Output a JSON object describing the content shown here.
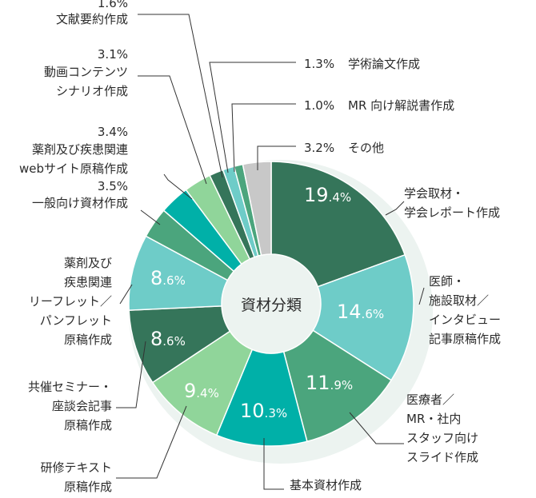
{
  "chart_data": {
    "type": "pie",
    "title": "資材分類",
    "slices": [
      {
        "key": "s1",
        "value": 19.4,
        "label": [
          "学会取材・",
          "学会レポート作成"
        ],
        "color": "#35755A",
        "inside": true,
        "big": "19",
        "small": ".4%"
      },
      {
        "key": "s2",
        "value": 14.6,
        "label": [
          "医師・",
          "施設取材／",
          "インタビュー",
          "記事原稿作成"
        ],
        "color": "#6ECCC8",
        "inside": true,
        "big": "14",
        "small": ".6%"
      },
      {
        "key": "s3",
        "value": 11.9,
        "label": [
          "医療者／",
          "MR・社内",
          "スタッフ向け",
          "スライド作成"
        ],
        "color": "#4BA57D",
        "inside": true,
        "big": "11",
        "small": ".9%"
      },
      {
        "key": "s4",
        "value": 10.3,
        "label": [
          "基本資材作成"
        ],
        "color": "#00B0A8",
        "inside": true,
        "big": "10",
        "small": ".3%"
      },
      {
        "key": "s5",
        "value": 9.4,
        "label": [
          "研修テキスト",
          "原稿作成"
        ],
        "color": "#90D59A",
        "inside": true,
        "big": "9",
        "small": ".4%"
      },
      {
        "key": "s6",
        "value": 8.6,
        "label": [
          "共催セミナー・",
          "座談会記事",
          "原稿作成"
        ],
        "color": "#35755A",
        "inside": true,
        "big": "8",
        "small": ".6%"
      },
      {
        "key": "s7",
        "value": 8.6,
        "label": [
          "薬剤及び",
          "疾患関連",
          "リーフレット／",
          "パンフレット",
          "原稿作成"
        ],
        "color": "#6ECCC8",
        "inside": true,
        "big": "8",
        "small": ".6%"
      },
      {
        "key": "s8",
        "value": 3.5,
        "label": [
          "一般向け資材作成"
        ],
        "pct": "3.5%",
        "color": "#4BA57D",
        "inside": false
      },
      {
        "key": "s9",
        "value": 3.4,
        "label": [
          "薬剤及び疾患関連",
          "webサイト原稿作成"
        ],
        "pct": "3.4%",
        "color": "#00B0A8",
        "inside": false
      },
      {
        "key": "s10",
        "value": 3.1,
        "label": [
          "動画コンテンツ",
          "シナリオ作成"
        ],
        "pct": "3.1%",
        "color": "#90D59A",
        "inside": false
      },
      {
        "key": "s11",
        "value": 1.6,
        "label": [
          "文献要約作成"
        ],
        "pct": "1.6%",
        "color": "#35755A",
        "inside": false
      },
      {
        "key": "s12",
        "value": 1.3,
        "label": [
          "学術論文作成"
        ],
        "pct": "1.3%",
        "color": "#6ECCC8",
        "inside": false
      },
      {
        "key": "s13",
        "value": 1.0,
        "label": [
          "MR 向け解説書作成"
        ],
        "pct": "1.0%",
        "color": "#4BA57D",
        "inside": false
      },
      {
        "key": "s14",
        "value": 3.2,
        "label": [
          "その他"
        ],
        "pct": "3.2%",
        "color": "#C8C8C8",
        "inside": false
      }
    ]
  }
}
